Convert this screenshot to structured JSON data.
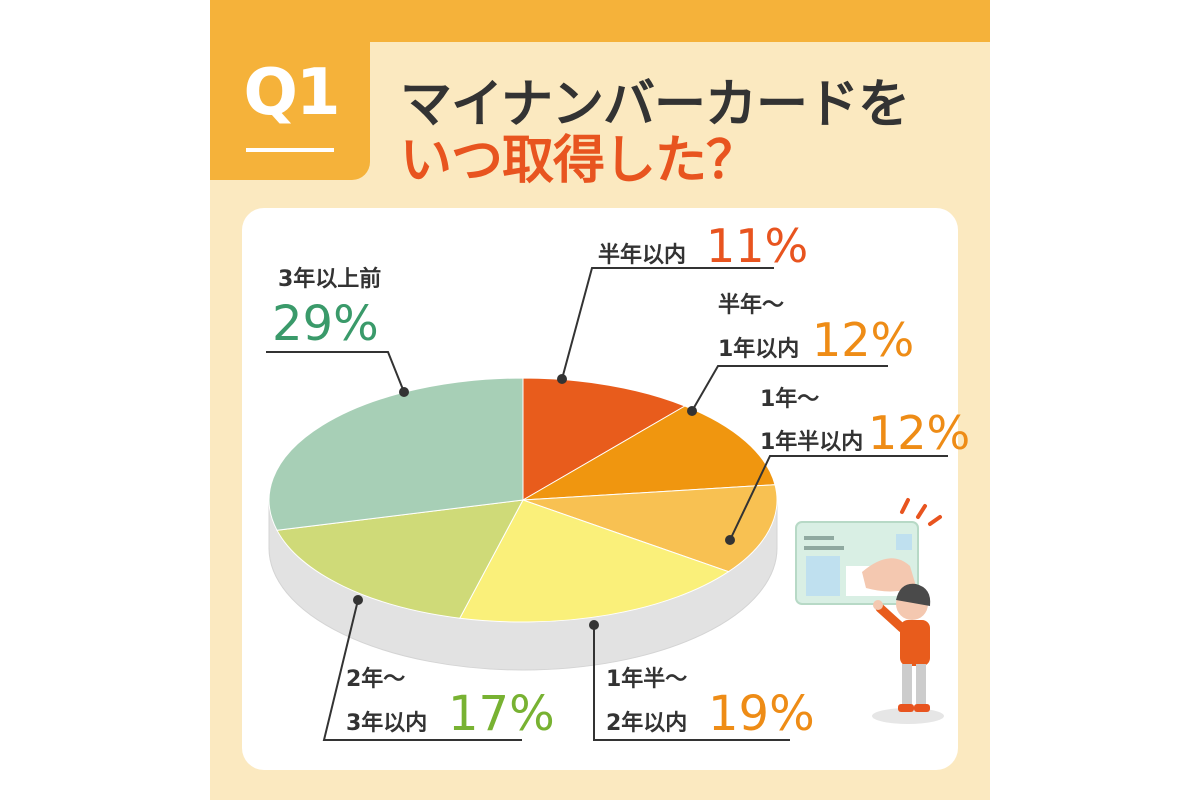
{
  "header": {
    "q_label": "Q1",
    "title_line1": "マイナンバーカードを",
    "title_line2": "いつ取得した？"
  },
  "colors": {
    "accent": "#f5b23a",
    "panel": "#fbe9c0",
    "title_red": "#e8541f"
  },
  "chart_data": {
    "type": "pie",
    "title": "マイナンバーカードをいつ取得した？",
    "unit": "%",
    "slices": [
      {
        "label_lines": [
          "半年以内"
        ],
        "value": 11,
        "value_label": "11%",
        "color": "#e85c1c",
        "label_color": "#e8541f"
      },
      {
        "label_lines": [
          "半年〜",
          "1年以内"
        ],
        "value": 12,
        "value_label": "12%",
        "color": "#f0960f",
        "label_color": "#ee8c16"
      },
      {
        "label_lines": [
          "1年〜",
          "1年半以内"
        ],
        "value": 12,
        "value_label": "12%",
        "color": "#f8c152",
        "label_color": "#ee8c16"
      },
      {
        "label_lines": [
          "1年半〜",
          "2年以内"
        ],
        "value": 19,
        "value_label": "19%",
        "color": "#faf07a",
        "label_color": "#ee8c16"
      },
      {
        "label_lines": [
          "2年〜",
          "3年以内"
        ],
        "value": 17,
        "value_label": "17%",
        "color": "#cfda78",
        "label_color": "#78b232"
      },
      {
        "label_lines": [
          "3年以上前"
        ],
        "value": 29,
        "value_label": "29%",
        "color": "#a7cfb6",
        "label_color": "#3a9a6a"
      }
    ]
  }
}
